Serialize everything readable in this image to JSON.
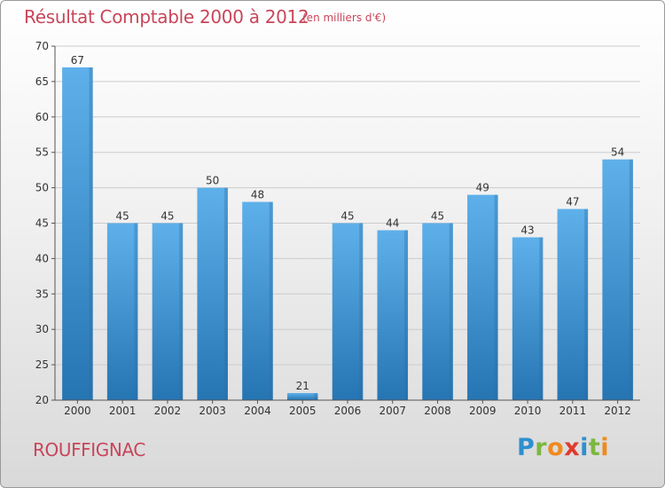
{
  "chart_data": {
    "type": "bar",
    "title": "Résultat Comptable 2000 à 2012",
    "subtitle": "(en milliers d'€)",
    "xlabel": "",
    "ylabel": "",
    "categories": [
      "2000",
      "2001",
      "2002",
      "2003",
      "2004",
      "2005",
      "2006",
      "2007",
      "2008",
      "2009",
      "2010",
      "2011",
      "2012"
    ],
    "values": [
      67,
      45,
      45,
      50,
      48,
      21,
      45,
      44,
      45,
      49,
      43,
      47,
      54
    ],
    "ylim": [
      20,
      70
    ],
    "yticks": [
      20,
      25,
      30,
      35,
      40,
      45,
      50,
      55,
      60,
      65,
      70
    ],
    "grid": true,
    "colors": {
      "bar_top": "#5eb0ea",
      "bar_bottom": "#2675b3",
      "grid": "#cccccc",
      "text": "#c8465a"
    }
  },
  "footer": {
    "city": "ROUFFIGNAC",
    "brand_letters": [
      {
        "ch": "P",
        "color": "#2e8fd0"
      },
      {
        "ch": "r",
        "color": "#7cb73f"
      },
      {
        "ch": "o",
        "color": "#f08a1c"
      },
      {
        "ch": "x",
        "color": "#e03a2e"
      },
      {
        "ch": "i",
        "color": "#2e8fd0"
      },
      {
        "ch": "t",
        "color": "#7cb73f"
      },
      {
        "ch": "i",
        "color": "#f08a1c"
      }
    ]
  }
}
